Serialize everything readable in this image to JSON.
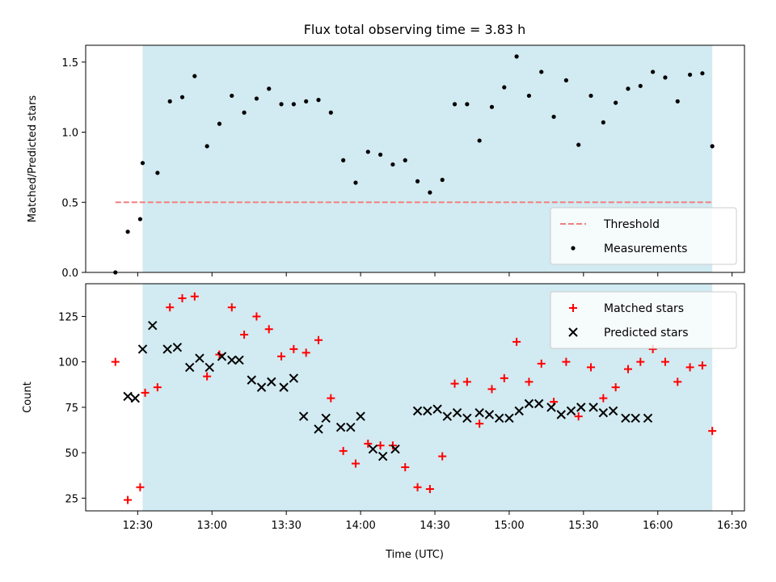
{
  "chart_data": {
    "type": "scatter",
    "title": "Flux total observing time = 3.83 h",
    "xlabel": "Time (UTC)",
    "xticks": [
      "12:30",
      "13:00",
      "13:30",
      "14:00",
      "14:30",
      "15:00",
      "15:30",
      "16:00",
      "16:30"
    ],
    "xlim": [
      "12:09",
      "16:35"
    ],
    "shaded_interval": [
      "12:32",
      "16:22"
    ],
    "shade_color": "#add8e6",
    "panels": [
      {
        "ylabel": "Matched/Predicted stars",
        "ylim": [
          0,
          1.62
        ],
        "yticks": [
          "0.0",
          "0.5",
          "1.0",
          "1.5"
        ],
        "legend_position": "lower-right",
        "threshold": {
          "name": "Threshold",
          "value": 0.5,
          "x_range": [
            "12:21",
            "16:22"
          ],
          "color": "#f08080",
          "style": "dashed"
        },
        "series": [
          {
            "name": "Measurements",
            "marker": "dot",
            "color": "#000000",
            "points": [
              [
                "12:21",
                0.0
              ],
              [
                "12:26",
                0.29
              ],
              [
                "12:31",
                0.38
              ],
              [
                "12:32",
                0.78
              ],
              [
                "12:38",
                0.71
              ],
              [
                "12:43",
                1.22
              ],
              [
                "12:48",
                1.25
              ],
              [
                "12:53",
                1.4
              ],
              [
                "12:58",
                0.9
              ],
              [
                "13:03",
                1.06
              ],
              [
                "13:08",
                1.26
              ],
              [
                "13:13",
                1.14
              ],
              [
                "13:18",
                1.24
              ],
              [
                "13:23",
                1.31
              ],
              [
                "13:28",
                1.2
              ],
              [
                "13:33",
                1.2
              ],
              [
                "13:38",
                1.22
              ],
              [
                "13:43",
                1.23
              ],
              [
                "13:48",
                1.14
              ],
              [
                "13:53",
                0.8
              ],
              [
                "13:58",
                0.64
              ],
              [
                "14:03",
                0.86
              ],
              [
                "14:08",
                0.84
              ],
              [
                "14:13",
                0.77
              ],
              [
                "14:18",
                0.8
              ],
              [
                "14:23",
                0.65
              ],
              [
                "14:28",
                0.57
              ],
              [
                "14:33",
                0.66
              ],
              [
                "14:38",
                1.2
              ],
              [
                "14:43",
                1.2
              ],
              [
                "14:48",
                0.94
              ],
              [
                "14:53",
                1.18
              ],
              [
                "14:58",
                1.32
              ],
              [
                "15:03",
                1.54
              ],
              [
                "15:08",
                1.26
              ],
              [
                "15:13",
                1.43
              ],
              [
                "15:18",
                1.11
              ],
              [
                "15:23",
                1.37
              ],
              [
                "15:28",
                0.91
              ],
              [
                "15:33",
                1.26
              ],
              [
                "15:38",
                1.07
              ],
              [
                "15:43",
                1.21
              ],
              [
                "15:48",
                1.31
              ],
              [
                "15:53",
                1.33
              ],
              [
                "15:58",
                1.43
              ],
              [
                "16:03",
                1.39
              ],
              [
                "16:08",
                1.22
              ],
              [
                "16:13",
                1.41
              ],
              [
                "16:18",
                1.42
              ],
              [
                "16:22",
                0.9
              ]
            ]
          }
        ]
      },
      {
        "ylabel": "Count",
        "ylim": [
          18,
          143
        ],
        "yticks": [
          "25",
          "50",
          "75",
          "100",
          "125"
        ],
        "legend_position": "upper-right",
        "series": [
          {
            "name": "Matched stars",
            "marker": "plus",
            "color": "#ff0000",
            "points": [
              [
                "12:21",
                100
              ],
              [
                "12:26",
                24
              ],
              [
                "12:31",
                31
              ],
              [
                "12:33",
                83
              ],
              [
                "12:38",
                86
              ],
              [
                "12:43",
                130
              ],
              [
                "12:48",
                135
              ],
              [
                "12:53",
                136
              ],
              [
                "12:58",
                92
              ],
              [
                "13:03",
                104
              ],
              [
                "13:08",
                130
              ],
              [
                "13:13",
                115
              ],
              [
                "13:18",
                125
              ],
              [
                "13:23",
                118
              ],
              [
                "13:28",
                103
              ],
              [
                "13:33",
                107
              ],
              [
                "13:38",
                105
              ],
              [
                "13:43",
                112
              ],
              [
                "13:48",
                80
              ],
              [
                "13:53",
                51
              ],
              [
                "13:58",
                44
              ],
              [
                "14:03",
                55
              ],
              [
                "14:08",
                54
              ],
              [
                "14:13",
                54
              ],
              [
                "14:18",
                42
              ],
              [
                "14:23",
                31
              ],
              [
                "14:28",
                30
              ],
              [
                "14:33",
                48
              ],
              [
                "14:38",
                88
              ],
              [
                "14:43",
                89
              ],
              [
                "14:48",
                66
              ],
              [
                "14:53",
                85
              ],
              [
                "14:58",
                91
              ],
              [
                "15:03",
                111
              ],
              [
                "15:08",
                89
              ],
              [
                "15:13",
                99
              ],
              [
                "15:18",
                78
              ],
              [
                "15:23",
                100
              ],
              [
                "15:28",
                70
              ],
              [
                "15:33",
                97
              ],
              [
                "15:38",
                80
              ],
              [
                "15:43",
                86
              ],
              [
                "15:48",
                96
              ],
              [
                "15:53",
                100
              ],
              [
                "15:58",
                107
              ],
              [
                "16:03",
                100
              ],
              [
                "16:08",
                89
              ],
              [
                "16:13",
                97
              ],
              [
                "16:18",
                98
              ],
              [
                "16:22",
                62
              ]
            ]
          },
          {
            "name": "Predicted stars",
            "marker": "x",
            "color": "#000000",
            "points": [
              [
                "12:26",
                81
              ],
              [
                "12:29",
                80
              ],
              [
                "12:32",
                107
              ],
              [
                "12:36",
                120
              ],
              [
                "12:42",
                107
              ],
              [
                "12:46",
                108
              ],
              [
                "12:51",
                97
              ],
              [
                "12:55",
                102
              ],
              [
                "12:59",
                97
              ],
              [
                "13:04",
                103
              ],
              [
                "13:08",
                101
              ],
              [
                "13:11",
                101
              ],
              [
                "13:16",
                90
              ],
              [
                "13:20",
                86
              ],
              [
                "13:24",
                89
              ],
              [
                "13:29",
                86
              ],
              [
                "13:33",
                91
              ],
              [
                "13:37",
                70
              ],
              [
                "13:43",
                63
              ],
              [
                "13:46",
                69
              ],
              [
                "13:52",
                64
              ],
              [
                "13:56",
                64
              ],
              [
                "14:00",
                70
              ],
              [
                "14:05",
                52
              ],
              [
                "14:09",
                48
              ],
              [
                "14:14",
                52
              ],
              [
                "14:23",
                73
              ],
              [
                "14:27",
                73
              ],
              [
                "14:31",
                74
              ],
              [
                "14:35",
                70
              ],
              [
                "14:39",
                72
              ],
              [
                "14:43",
                69
              ],
              [
                "14:48",
                72
              ],
              [
                "14:52",
                71
              ],
              [
                "14:56",
                69
              ],
              [
                "15:00",
                69
              ],
              [
                "15:04",
                73
              ],
              [
                "15:08",
                77
              ],
              [
                "15:12",
                77
              ],
              [
                "15:17",
                75
              ],
              [
                "15:21",
                71
              ],
              [
                "15:25",
                73
              ],
              [
                "15:29",
                75
              ],
              [
                "15:34",
                75
              ],
              [
                "15:38",
                72
              ],
              [
                "15:42",
                73
              ],
              [
                "15:47",
                69
              ],
              [
                "15:51",
                69
              ],
              [
                "15:56",
                69
              ]
            ]
          }
        ]
      }
    ]
  }
}
